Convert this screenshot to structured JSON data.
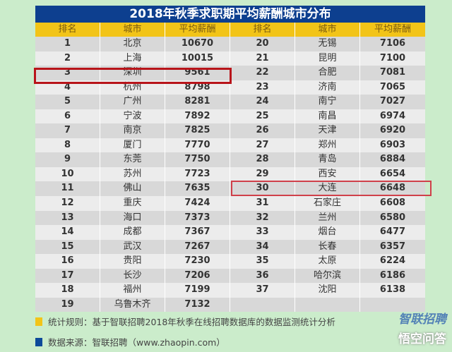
{
  "title": "2018年秋季求职期平均薪酬城市分布",
  "headers": [
    "排名",
    "城市",
    "平均薪酬",
    "排名",
    "城市",
    "平均薪酬"
  ],
  "left": [
    [
      "1",
      "北京",
      "10670"
    ],
    [
      "2",
      "上海",
      "10015"
    ],
    [
      "3",
      "深圳",
      "9561"
    ],
    [
      "4",
      "杭州",
      "8798"
    ],
    [
      "5",
      "广州",
      "8281"
    ],
    [
      "6",
      "宁波",
      "7892"
    ],
    [
      "7",
      "南京",
      "7825"
    ],
    [
      "8",
      "厦门",
      "7770"
    ],
    [
      "9",
      "东莞",
      "7750"
    ],
    [
      "10",
      "苏州",
      "7723"
    ],
    [
      "11",
      "佛山",
      "7635"
    ],
    [
      "12",
      "重庆",
      "7424"
    ],
    [
      "13",
      "海口",
      "7373"
    ],
    [
      "14",
      "成都",
      "7367"
    ],
    [
      "15",
      "武汉",
      "7267"
    ],
    [
      "16",
      "贵阳",
      "7230"
    ],
    [
      "17",
      "长沙",
      "7206"
    ],
    [
      "18",
      "福州",
      "7199"
    ],
    [
      "19",
      "乌鲁木齐",
      "7132"
    ]
  ],
  "right": [
    [
      "20",
      "无锡",
      "7106"
    ],
    [
      "21",
      "昆明",
      "7100"
    ],
    [
      "22",
      "合肥",
      "7081"
    ],
    [
      "23",
      "济南",
      "7065"
    ],
    [
      "24",
      "南宁",
      "7027"
    ],
    [
      "25",
      "南昌",
      "6974"
    ],
    [
      "26",
      "天津",
      "6920"
    ],
    [
      "27",
      "郑州",
      "6903"
    ],
    [
      "28",
      "青岛",
      "6884"
    ],
    [
      "29",
      "西安",
      "6654"
    ],
    [
      "30",
      "大连",
      "6648"
    ],
    [
      "31",
      "石家庄",
      "6608"
    ],
    [
      "32",
      "兰州",
      "6580"
    ],
    [
      "33",
      "烟台",
      "6477"
    ],
    [
      "34",
      "长春",
      "6357"
    ],
    [
      "35",
      "太原",
      "6224"
    ],
    [
      "36",
      "哈尔滨",
      "6186"
    ],
    [
      "37",
      "沈阳",
      "6138"
    ]
  ],
  "highlighted_ranks": [
    "3",
    "30"
  ],
  "footnotes": {
    "rule": "统计规则：基于智联招聘2018年秋季在线招聘数据库的数据监测统计分析",
    "source": "数据来源：智联招聘（www.zhaopin.com）"
  },
  "watermarks": {
    "brand": "智联招聘",
    "platform": "悟空问答"
  },
  "colors": {
    "title_bg": "#0d3f8f",
    "header_bg": "#f2c418",
    "highlight": "#b8141a",
    "rule_marker": "#f2c418",
    "source_marker": "#0d4a9a"
  }
}
